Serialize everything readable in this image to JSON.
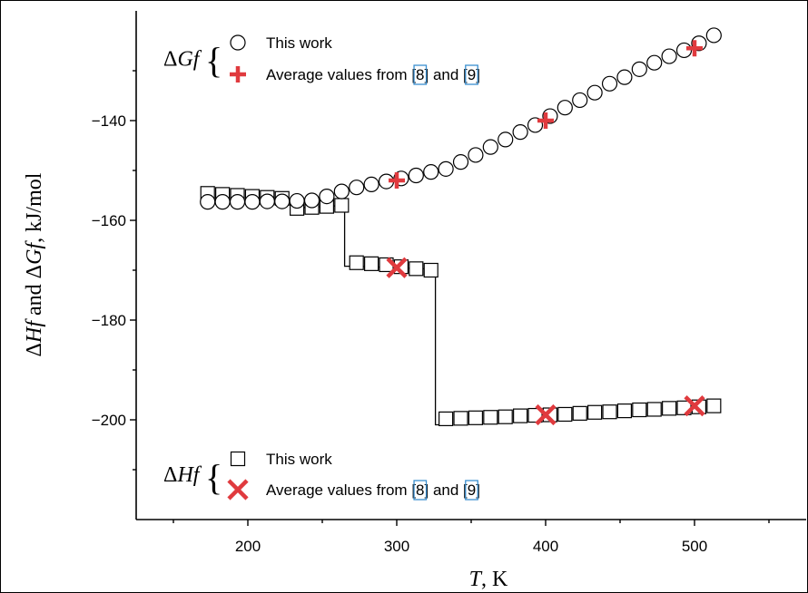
{
  "chart_data": {
    "type": "scatter",
    "xlabel": "T, K",
    "xlabel_var": "T",
    "xlabel_unit": ", K",
    "ylabel": "ΔHf and ΔGf, kJ/mol",
    "xlim": [
      125,
      570
    ],
    "ylim": [
      -220,
      -120
    ],
    "xticks": [
      200,
      300,
      400,
      500
    ],
    "yticks": [
      -140,
      -160,
      -180,
      -200
    ],
    "tick_labels_x": [
      "200",
      "300",
      "400",
      "500"
    ],
    "tick_labels_y": [
      "−140",
      "−160",
      "−180",
      "−200"
    ],
    "legend_groups": [
      {
        "symbol": "Δ",
        "var": "Gf",
        "entries": [
          {
            "marker": "circle",
            "label": "This work"
          },
          {
            "marker": "plus",
            "label_parts": [
              "Average values from [",
              "8",
              "] and [",
              "9",
              "]"
            ]
          }
        ]
      },
      {
        "symbol": "Δ",
        "var": "Hf",
        "entries": [
          {
            "marker": "square",
            "label": "This work"
          },
          {
            "marker": "cross",
            "label_parts": [
              "Average values from [",
              "8",
              "] and [",
              "9",
              "]"
            ]
          }
        ]
      }
    ],
    "series": [
      {
        "name": "ΔGf This work",
        "marker": "circle",
        "x": [
          173,
          183,
          193,
          203,
          213,
          223,
          233,
          243,
          253,
          263,
          273,
          283,
          293,
          303,
          313,
          323,
          333,
          343,
          353,
          363,
          373,
          383,
          393,
          403,
          413,
          423,
          433,
          443,
          453,
          463,
          473,
          483,
          493,
          503,
          513
        ],
        "y": [
          -156.3,
          -156.3,
          -156.3,
          -156.3,
          -156.2,
          -156.2,
          -156.1,
          -156.0,
          -155.2,
          -154.2,
          -153.4,
          -152.8,
          -152.2,
          -151.6,
          -151.0,
          -150.3,
          -149.7,
          -148.3,
          -146.9,
          -145.3,
          -143.8,
          -142.3,
          -140.9,
          -139.1,
          -137.4,
          -135.9,
          -134.4,
          -132.6,
          -131.3,
          -129.7,
          -128.4,
          -127.1,
          -125.9,
          -124.5,
          -122.9
        ]
      },
      {
        "name": "ΔGf Average values from [8] and [9]",
        "marker": "plus",
        "x": [
          300,
          400,
          500
        ],
        "y": [
          -152.0,
          -140.0,
          -125.5
        ]
      },
      {
        "name": "ΔHf This work",
        "marker": "square",
        "x": [
          173,
          183,
          193,
          203,
          213,
          223,
          233,
          243,
          253,
          263,
          273,
          283,
          293,
          303,
          313,
          323,
          333,
          343,
          353,
          363,
          373,
          383,
          393,
          403,
          413,
          423,
          433,
          443,
          453,
          463,
          473,
          483,
          493,
          503,
          513
        ],
        "y": [
          -154.6,
          -154.8,
          -155.0,
          -155.2,
          -155.4,
          -155.6,
          -157.6,
          -157.4,
          -157.2,
          -157.0,
          -168.5,
          -168.7,
          -168.9,
          -169.3,
          -169.7,
          -170.0,
          -199.8,
          -199.7,
          -199.6,
          -199.5,
          -199.4,
          -199.2,
          -199.1,
          -199.0,
          -198.9,
          -198.7,
          -198.5,
          -198.4,
          -198.2,
          -198.0,
          -197.9,
          -197.7,
          -197.6,
          -197.4,
          -197.2
        ]
      },
      {
        "name": "ΔHf Average values from [8] and [9]",
        "marker": "cross",
        "x": [
          300,
          400,
          500
        ],
        "y": [
          -169.5,
          -199.0,
          -197.2
        ]
      }
    ],
    "step_line": {
      "x": [
        233,
        265,
        265,
        272,
        272,
        326,
        326,
        333,
        333
      ],
      "y": [
        -157.5,
        -157.0,
        -169.2,
        -169.2,
        -169.2,
        -169.8,
        -201.0,
        -201.0,
        -200.3
      ]
    },
    "grid": false,
    "legend_position": "in-plot",
    "colors": {
      "marker_avg": "#e03a3e",
      "ref_box": "#3a8fd0",
      "axis": "#000000"
    }
  }
}
